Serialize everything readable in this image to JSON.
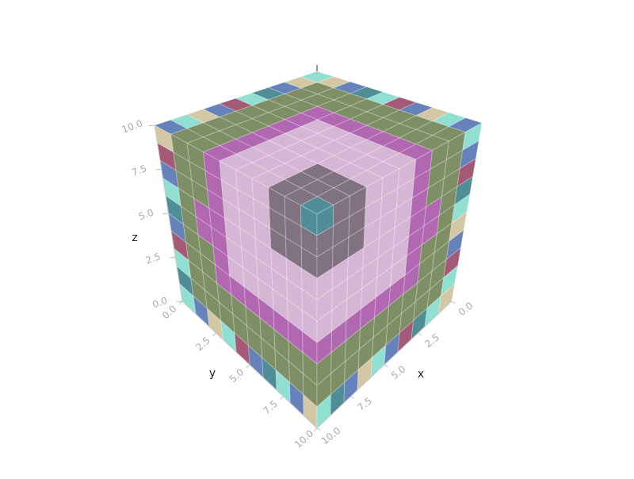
{
  "chart_data": {
    "type": "voxel",
    "xlabel": "x",
    "ylabel": "y",
    "zlabel": "z",
    "xlim": [
      0,
      10
    ],
    "ylim": [
      0,
      10
    ],
    "zlim": [
      0,
      10
    ],
    "xticks": [
      {
        "value": 0,
        "label": "0.0"
      },
      2.5,
      {
        "value": 5,
        "label": "5.0"
      },
      7.5,
      {
        "value": 10,
        "label": "10.0"
      }
    ],
    "yticks": [
      {
        "value": 0,
        "label": "0.0"
      },
      2.5,
      {
        "value": 5,
        "label": "5.0"
      },
      7.5,
      {
        "value": 10,
        "label": "10.0"
      }
    ],
    "zticks": [
      {
        "value": 0,
        "label": "0.0"
      },
      2.5,
      {
        "value": 5,
        "label": "5.0"
      },
      7.5,
      {
        "value": 10,
        "label": "10.0"
      }
    ],
    "palette": [
      "#5a6e3a",
      "#9b3d9b",
      "#c9a3c9",
      "#5e4a5e",
      "#1e6e7a",
      "#3b5fa8",
      "#6fd6c6",
      "#c8b88a",
      "#8b2a50"
    ],
    "voxel_faces": [
      [
        [
          4,
          3,
          3,
          2,
          2,
          2,
          1,
          0,
          0,
          5
        ],
        [
          3,
          3,
          3,
          2,
          2,
          2,
          1,
          0,
          0,
          6
        ],
        [
          3,
          3,
          3,
          2,
          2,
          2,
          1,
          0,
          0,
          7
        ],
        [
          2,
          2,
          2,
          2,
          2,
          2,
          1,
          0,
          0,
          5
        ],
        [
          2,
          2,
          2,
          2,
          2,
          2,
          1,
          0,
          0,
          8
        ],
        [
          2,
          2,
          2,
          2,
          2,
          2,
          1,
          0,
          0,
          6
        ],
        [
          1,
          1,
          1,
          1,
          1,
          1,
          1,
          0,
          0,
          4
        ],
        [
          0,
          0,
          0,
          0,
          0,
          0,
          0,
          0,
          0,
          5
        ],
        [
          0,
          0,
          0,
          0,
          0,
          0,
          0,
          0,
          0,
          7
        ],
        [
          5,
          6,
          7,
          5,
          8,
          6,
          4,
          5,
          7,
          6
        ]
      ],
      [
        [
          4,
          3,
          3,
          2,
          2,
          2,
          1,
          0,
          0,
          7
        ],
        [
          3,
          3,
          3,
          2,
          2,
          2,
          1,
          0,
          0,
          8
        ],
        [
          3,
          3,
          3,
          2,
          2,
          2,
          1,
          0,
          0,
          5
        ],
        [
          2,
          2,
          2,
          2,
          2,
          2,
          1,
          1,
          0,
          6
        ],
        [
          2,
          2,
          2,
          2,
          2,
          2,
          1,
          1,
          0,
          4
        ],
        [
          2,
          2,
          2,
          2,
          2,
          2,
          1,
          0,
          0,
          5
        ],
        [
          1,
          1,
          1,
          1,
          1,
          1,
          1,
          0,
          0,
          8
        ],
        [
          0,
          0,
          0,
          0,
          0,
          0,
          0,
          0,
          0,
          6
        ],
        [
          0,
          0,
          0,
          0,
          0,
          0,
          0,
          0,
          0,
          4
        ],
        [
          7,
          5,
          6,
          4,
          5,
          8,
          6,
          7,
          5,
          6
        ]
      ],
      [
        [
          4,
          3,
          3,
          2,
          2,
          2,
          1,
          0,
          0,
          6
        ],
        [
          3,
          3,
          3,
          2,
          2,
          2,
          1,
          0,
          0,
          5
        ],
        [
          3,
          3,
          3,
          2,
          2,
          2,
          1,
          0,
          0,
          8
        ],
        [
          2,
          2,
          2,
          2,
          2,
          2,
          1,
          1,
          0,
          4
        ],
        [
          2,
          2,
          2,
          2,
          2,
          2,
          1,
          1,
          0,
          6
        ],
        [
          2,
          2,
          2,
          2,
          2,
          2,
          1,
          0,
          0,
          7
        ],
        [
          1,
          1,
          1,
          1,
          1,
          1,
          1,
          0,
          0,
          5
        ],
        [
          0,
          0,
          0,
          0,
          0,
          0,
          0,
          0,
          0,
          8
        ],
        [
          0,
          0,
          0,
          0,
          0,
          0,
          0,
          0,
          0,
          6
        ],
        [
          6,
          4,
          5,
          7,
          6,
          5,
          8,
          4,
          6,
          7
        ]
      ]
    ]
  }
}
